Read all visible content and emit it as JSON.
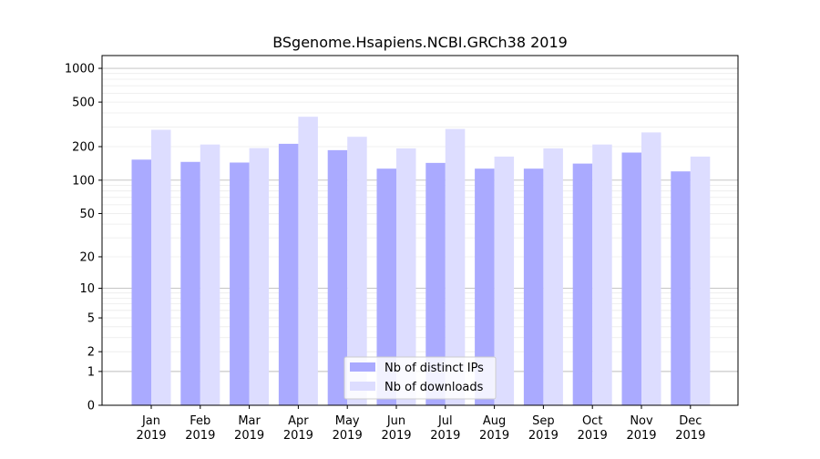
{
  "chart_data": {
    "type": "bar",
    "title": "BSgenome.Hsapiens.NCBI.GRCh38 2019",
    "xlabel": "",
    "ylabel": "",
    "yscale": "log",
    "ylim": [
      0,
      1300
    ],
    "y_ticks": [
      {
        "value": 0,
        "label": "0"
      },
      {
        "value": 1,
        "label": "1"
      },
      {
        "value": 2,
        "label": "2"
      },
      {
        "value": 5,
        "label": "5"
      },
      {
        "value": 10,
        "label": "10"
      },
      {
        "value": 20,
        "label": "20"
      },
      {
        "value": 50,
        "label": "50"
      },
      {
        "value": 100,
        "label": "100"
      },
      {
        "value": 200,
        "label": "200"
      },
      {
        "value": 500,
        "label": "500"
      },
      {
        "value": 1000,
        "label": "1000"
      }
    ],
    "categories": [
      {
        "month": "Jan",
        "year": "2019"
      },
      {
        "month": "Feb",
        "year": "2019"
      },
      {
        "month": "Mar",
        "year": "2019"
      },
      {
        "month": "Apr",
        "year": "2019"
      },
      {
        "month": "May",
        "year": "2019"
      },
      {
        "month": "Jun",
        "year": "2019"
      },
      {
        "month": "Jul",
        "year": "2019"
      },
      {
        "month": "Aug",
        "year": "2019"
      },
      {
        "month": "Sep",
        "year": "2019"
      },
      {
        "month": "Oct",
        "year": "2019"
      },
      {
        "month": "Nov",
        "year": "2019"
      },
      {
        "month": "Dec",
        "year": "2019"
      }
    ],
    "series": [
      {
        "name": "Nb of distinct IPs",
        "color": "#aaaaff",
        "values": [
          153,
          146,
          144,
          212,
          186,
          127,
          143,
          127,
          127,
          141,
          177,
          120
        ]
      },
      {
        "name": "Nb of downloads",
        "color": "#ddddff",
        "values": [
          283,
          209,
          194,
          370,
          245,
          193,
          288,
          163,
          193,
          209,
          268,
          163
        ]
      }
    ],
    "grid": true,
    "legend_position": "bottom-center"
  }
}
